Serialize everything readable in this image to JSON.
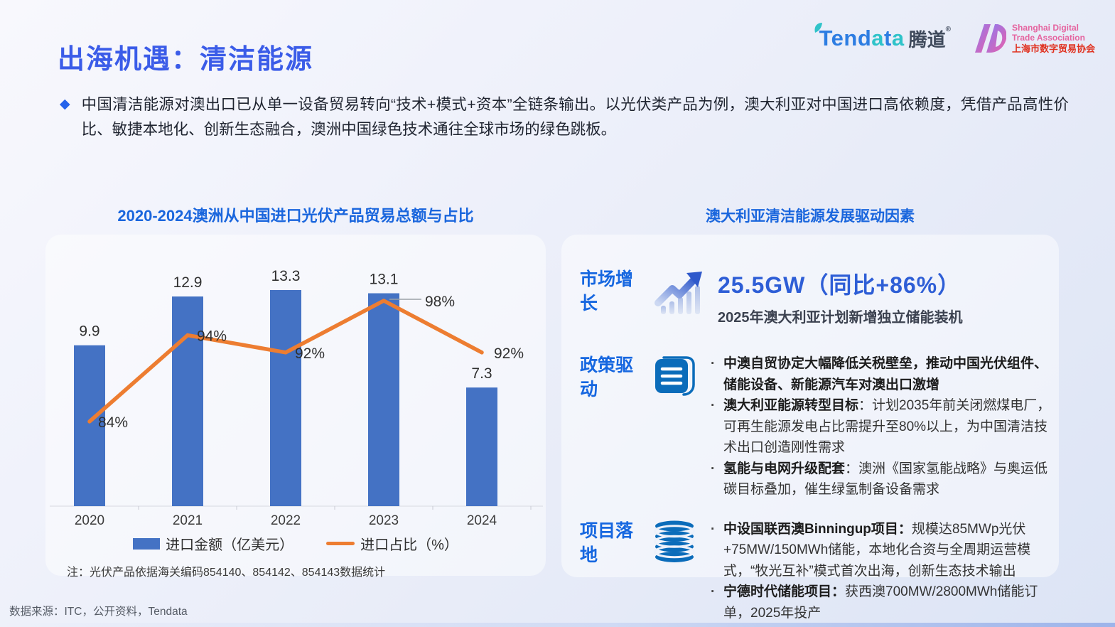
{
  "page": {
    "title": "出海机遇：清洁能源",
    "source": "数据来源：ITC，公开资料，Tendata"
  },
  "logos": {
    "tendata": {
      "p1": "Tend",
      "p2": "a",
      "p3": "t",
      "p4": "a",
      "cn": "腾道",
      "reg": "®"
    },
    "sdta": {
      "line1": "Shanghai Digital",
      "line2": "Trade Association",
      "line3": "上海市数字贸易协会"
    }
  },
  "intro": {
    "bullet": "◆",
    "text": "中国清洁能源对澳出口已从单一设备贸易转向“技术+模式+资本”全链条输出。以光伏类产品为例，澳大利亚对中国进口高依赖度，凭借产品高性价比、敏捷本地化、创新生态融合，澳洲中国绿色技术通往全球市场的绿色跳板。"
  },
  "chart_data": {
    "type": "bar+line",
    "title": "2020-2024澳洲从中国进口光伏产品贸易总额与占比",
    "categories": [
      "2020",
      "2021",
      "2022",
      "2023",
      "2024"
    ],
    "series": [
      {
        "name": "进口金额（亿美元）",
        "type": "bar",
        "color": "#4472c4",
        "values": [
          9.9,
          12.9,
          13.3,
          13.1,
          7.3
        ]
      },
      {
        "name": "进口占比（%）",
        "type": "line",
        "color": "#ed7d31",
        "unit": "%",
        "values": [
          84,
          94,
          92,
          98,
          92
        ]
      }
    ],
    "left_ylim": [
      0,
      15
    ],
    "right_ylim": [
      80,
      100
    ],
    "grid": false,
    "legend_position": "bottom",
    "note": "注：光伏产品依据海关编码854140、854142、854143数据统计"
  },
  "panel": {
    "title": "澳大利亚清洁能源发展驱动因素",
    "rows": [
      {
        "label": "市场增长",
        "icon": "trend-up-icon",
        "headline": "25.5GW（同比+86%）",
        "subline": "2025年澳大利亚计划新增独立储能装机"
      },
      {
        "label": "政策驱动",
        "icon": "document-icon",
        "bullets": [
          {
            "bold": "中澳自贸协定大幅降低关税壁垒，推动中国光伏组件、储能设备、新能源汽车对澳出口激增",
            "rest": ""
          },
          {
            "bold": "澳大利亚能源转型目标",
            "rest": "：计划2035年前关闭燃煤电厂，可再生能源发电占比需提升至80%以上，为中国清洁技术出口创造刚性需求"
          },
          {
            "bold": "氢能与电网升级配套",
            "rest": "：澳洲《国家氢能战略》与奥运低碳目标叠加，催生绿氢制备设备需求"
          }
        ]
      },
      {
        "label": "项目落地",
        "icon": "database-icon",
        "bullets": [
          {
            "bold": "中设国联西澳Binningup项目：",
            "rest": "规模达85MWp光伏+75MW/150MWh储能，本地化合资与全周期运营模式，“牧光互补”模式首次出海，创新生态技术输出"
          },
          {
            "bold": "宁德时代储能项目：",
            "rest": "获西澳700MW/2800MWh储能订单，2025年投产"
          }
        ]
      }
    ]
  },
  "colors": {
    "title_blue": "#3b5ce8",
    "section_blue": "#1a66dd",
    "bar_blue": "#4472c4",
    "line_orange": "#ed7d31",
    "icon_blue": "#0b6cba"
  }
}
